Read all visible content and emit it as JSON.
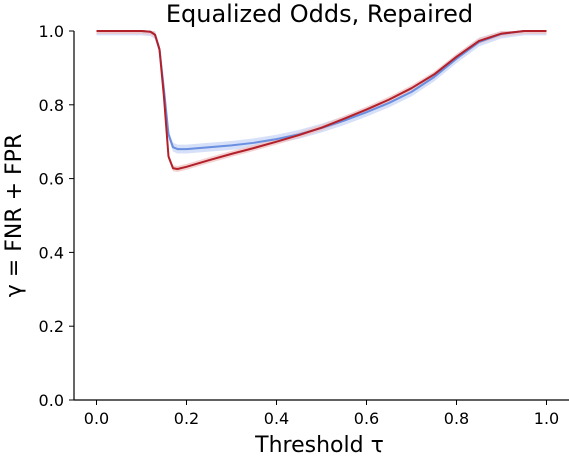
{
  "chart_data": {
    "type": "line",
    "title": "Equalized Odds, Repaired",
    "xlabel": "Threshold τ",
    "ylabel": "γ = FNR + FPR",
    "xlim": [
      -0.05,
      1.05
    ],
    "ylim": [
      0.0,
      1.0
    ],
    "xticks": [
      0.0,
      0.2,
      0.4,
      0.6,
      0.8,
      1.0
    ],
    "xtick_labels": [
      "0.0",
      "0.2",
      "0.4",
      "0.6",
      "0.8",
      "1.0"
    ],
    "yticks": [
      0.0,
      0.2,
      0.4,
      0.6,
      0.8,
      1.0
    ],
    "ytick_labels": [
      "0.0",
      "0.2",
      "0.4",
      "0.6",
      "0.8",
      "1.0"
    ],
    "grid": false,
    "series": [
      {
        "color": "#6a8fe0",
        "band_color": "#c8d6f5",
        "band_halfwidth": 0.012,
        "x": [
          0.0,
          0.1,
          0.12,
          0.13,
          0.14,
          0.15,
          0.16,
          0.17,
          0.18,
          0.2,
          0.25,
          0.3,
          0.35,
          0.4,
          0.45,
          0.5,
          0.55,
          0.6,
          0.65,
          0.7,
          0.75,
          0.8,
          0.85,
          0.9,
          0.95,
          1.0
        ],
        "y": [
          1.0,
          1.0,
          0.998,
          0.99,
          0.95,
          0.84,
          0.72,
          0.685,
          0.68,
          0.68,
          0.685,
          0.69,
          0.697,
          0.707,
          0.72,
          0.737,
          0.757,
          0.78,
          0.805,
          0.835,
          0.875,
          0.925,
          0.97,
          0.992,
          1.0,
          1.0
        ]
      },
      {
        "color": "#b3202a",
        "band_color": "#f0c2c2",
        "band_halfwidth": 0.008,
        "x": [
          0.0,
          0.1,
          0.12,
          0.13,
          0.14,
          0.15,
          0.16,
          0.17,
          0.18,
          0.2,
          0.25,
          0.3,
          0.35,
          0.4,
          0.45,
          0.5,
          0.55,
          0.6,
          0.65,
          0.7,
          0.75,
          0.8,
          0.85,
          0.9,
          0.95,
          1.0
        ],
        "y": [
          1.0,
          1.0,
          0.998,
          0.99,
          0.95,
          0.82,
          0.66,
          0.628,
          0.626,
          0.632,
          0.65,
          0.667,
          0.683,
          0.7,
          0.718,
          0.738,
          0.762,
          0.787,
          0.814,
          0.845,
          0.882,
          0.93,
          0.973,
          0.993,
          1.0,
          1.0
        ]
      }
    ]
  }
}
